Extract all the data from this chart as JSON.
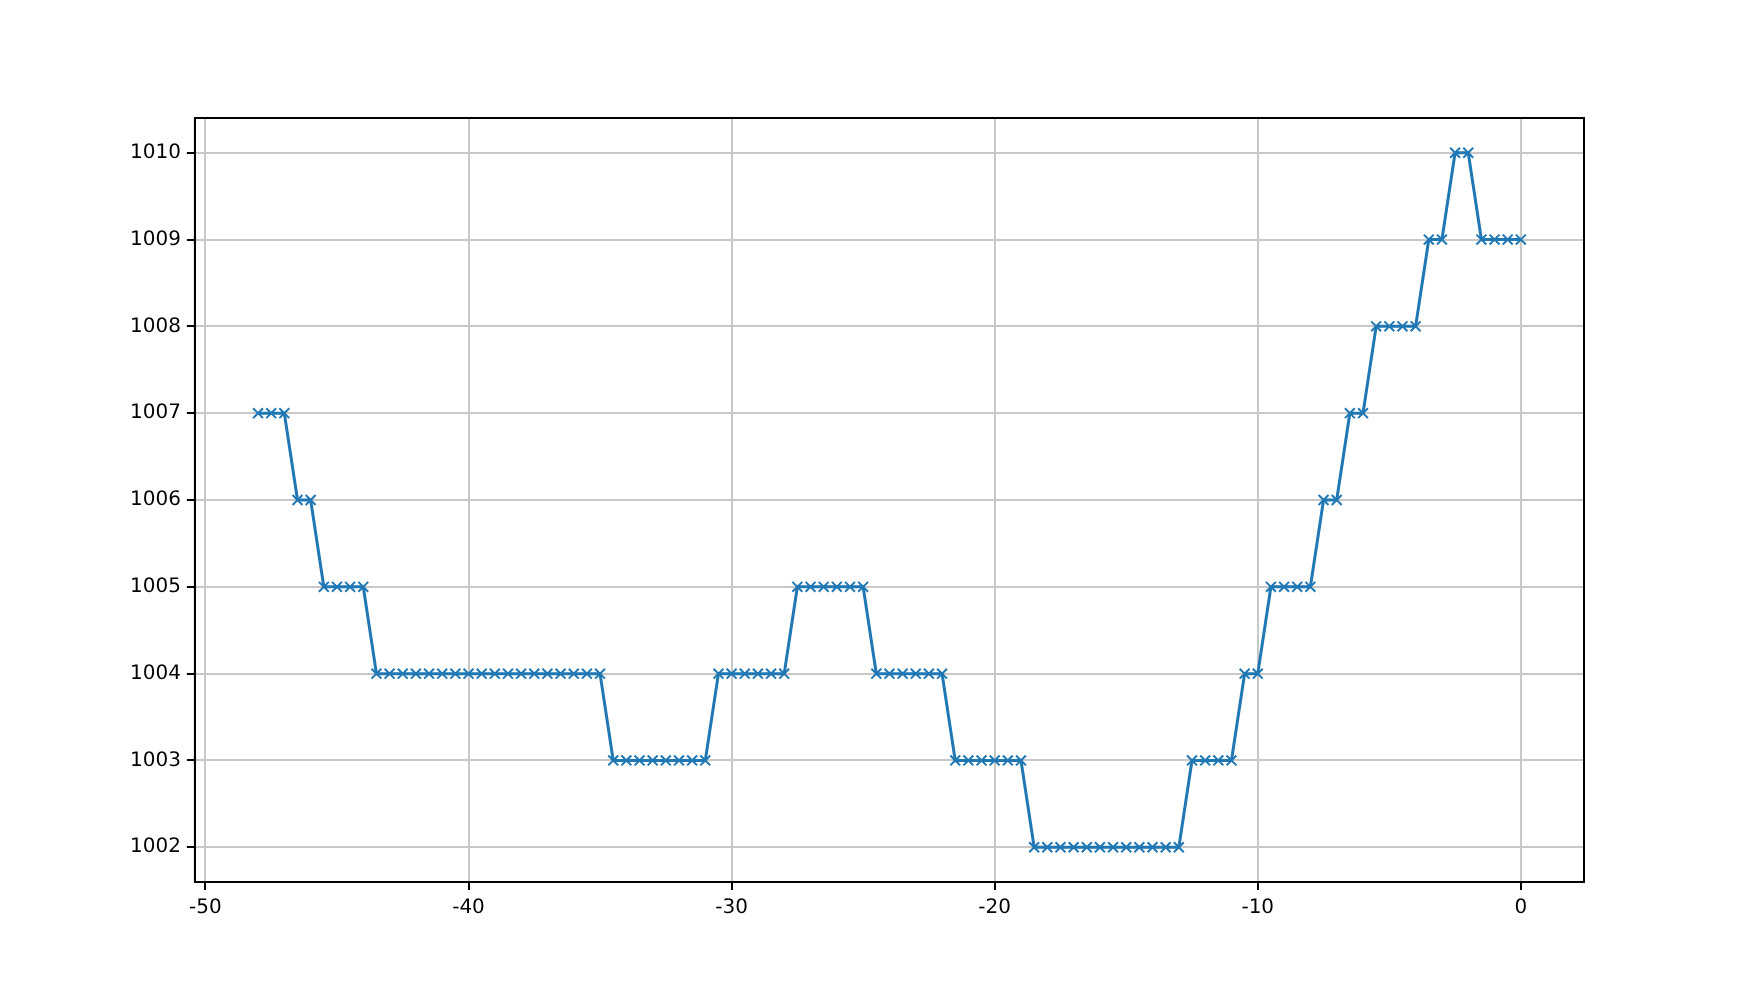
{
  "chart_data": {
    "type": "line",
    "x": [
      -48,
      -47.5,
      -47,
      -46.5,
      -46,
      -45.5,
      -45,
      -44.5,
      -44,
      -43.5,
      -43,
      -42.5,
      -42,
      -41.5,
      -41,
      -40.5,
      -40,
      -39.5,
      -39,
      -38.5,
      -38,
      -37.5,
      -37,
      -36.5,
      -36,
      -35.5,
      -35,
      -34.5,
      -34,
      -33.5,
      -33,
      -32.5,
      -32,
      -31.5,
      -31,
      -30.5,
      -30,
      -29.5,
      -29,
      -28.5,
      -28,
      -27.5,
      -27,
      -26.5,
      -26,
      -25.5,
      -25,
      -24.5,
      -24,
      -23.5,
      -23,
      -22.5,
      -22,
      -21.5,
      -21,
      -20.5,
      -20,
      -19.5,
      -19,
      -18.5,
      -18,
      -17.5,
      -17,
      -16.5,
      -16,
      -15.5,
      -15,
      -14.5,
      -14,
      -13.5,
      -13,
      -12.5,
      -12,
      -11.5,
      -11,
      -10.5,
      -10,
      -9.5,
      -9,
      -8.5,
      -8,
      -7.5,
      -7,
      -6.5,
      -6,
      -5.5,
      -5,
      -4.5,
      -4,
      -3.5,
      -3,
      -2.5,
      -2,
      -1.5,
      -1,
      -0.5,
      0
    ],
    "series": [
      {
        "color": "#1f77b4",
        "values": [
          1007,
          1007,
          1007,
          1006,
          1006,
          1005,
          1005,
          1005,
          1005,
          1004,
          1004,
          1004,
          1004,
          1004,
          1004,
          1004,
          1004,
          1004,
          1004,
          1004,
          1004,
          1004,
          1004,
          1004,
          1004,
          1004,
          1004,
          1003,
          1003,
          1003,
          1003,
          1003,
          1003,
          1003,
          1003,
          1004,
          1004,
          1004,
          1004,
          1004,
          1004,
          1005,
          1005,
          1005,
          1005,
          1005,
          1005,
          1004,
          1004,
          1004,
          1004,
          1004,
          1004,
          1003,
          1003,
          1003,
          1003,
          1003,
          1003,
          1002,
          1002,
          1002,
          1002,
          1002,
          1002,
          1002,
          1002,
          1002,
          1002,
          1002,
          1002,
          1003,
          1003,
          1003,
          1003,
          1004,
          1004,
          1005,
          1005,
          1005,
          1005,
          1006,
          1006,
          1007,
          1007,
          1008,
          1008,
          1008,
          1008,
          1009,
          1009,
          1010,
          1010,
          1009,
          1009,
          1009,
          1009
        ]
      }
    ],
    "xlim": [
      -50.4,
      2.4
    ],
    "xticks": [
      -50,
      -40,
      -30,
      -20,
      -10,
      0
    ],
    "ylim": [
      1001.6,
      1010.4
    ],
    "yticks": [
      1002,
      1003,
      1004,
      1005,
      1006,
      1007,
      1008,
      1009,
      1010
    ],
    "grid": true,
    "marker": "cross",
    "line_style": "solid"
  }
}
